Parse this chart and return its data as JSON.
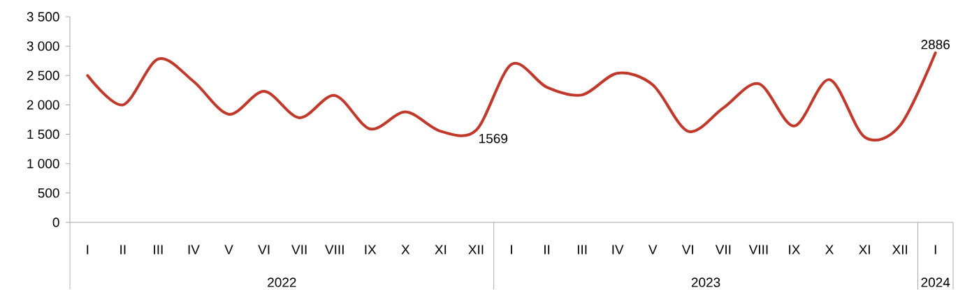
{
  "chart_data": {
    "type": "line",
    "categories": [
      "I",
      "II",
      "III",
      "IV",
      "V",
      "VI",
      "VII",
      "VIII",
      "IX",
      "X",
      "XI",
      "XII",
      "I",
      "II",
      "III",
      "IV",
      "V",
      "VI",
      "VII",
      "VIII",
      "IX",
      "X",
      "XI",
      "XII",
      "I"
    ],
    "series": [
      {
        "color": "#c0392b",
        "values": [
          2500,
          2000,
          2780,
          2400,
          1840,
          2230,
          1780,
          2160,
          1590,
          1880,
          1550,
          1569,
          2690,
          2300,
          2170,
          2540,
          2340,
          1550,
          1950,
          2360,
          1640,
          2430,
          1450,
          1650,
          2886
        ],
        "value_labels": [
          null,
          null,
          null,
          null,
          null,
          null,
          null,
          null,
          null,
          null,
          null,
          "1569",
          null,
          null,
          null,
          null,
          null,
          null,
          null,
          null,
          null,
          null,
          null,
          null,
          "2886"
        ]
      }
    ],
    "ylim": [
      0,
      3500
    ],
    "yticks": [
      0,
      500,
      {
        "value": 1000,
        "label": "1 000"
      },
      {
        "value": 1500,
        "label": "1 500"
      },
      {
        "value": 2000,
        "label": "2 000"
      },
      {
        "value": 2500,
        "label": "2 500"
      },
      {
        "value": 3000,
        "label": "3 000"
      },
      {
        "value": 3500,
        "label": "3 500"
      }
    ],
    "annotations": [
      "2022",
      "2023",
      "2024"
    ],
    "grid": false,
    "marker": "none",
    "line_style": "solid"
  }
}
